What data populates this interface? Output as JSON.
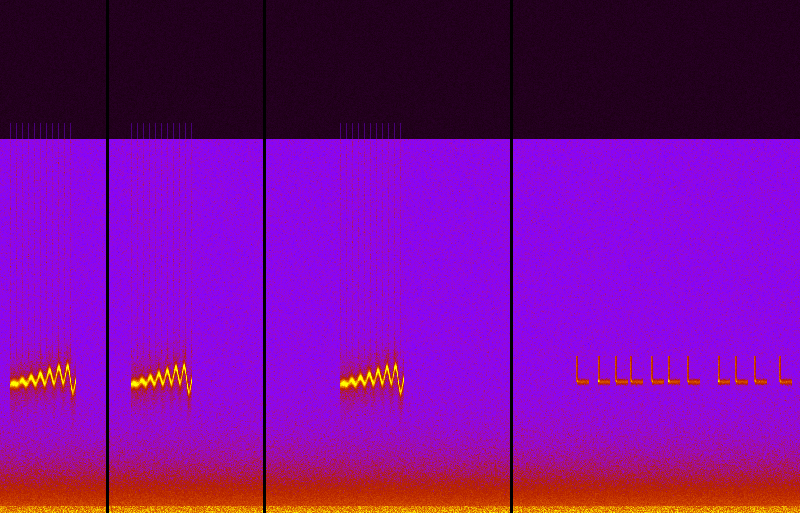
{
  "chart_data": {
    "type": "spectrogram",
    "tick_labels": false,
    "xlim": [
      0,
      1
    ],
    "ylim": [
      0,
      1
    ],
    "dividers": [
      0.134,
      0.331,
      0.64
    ],
    "cutoff": 0.73,
    "calls": [
      {
        "type": "chirp",
        "start": 0.012,
        "end": 0.095,
        "frequency": 0.25
      },
      {
        "type": "chirp",
        "start": 0.163,
        "end": 0.24,
        "frequency": 0.25
      },
      {
        "type": "chirp",
        "start": 0.425,
        "end": 0.505,
        "frequency": 0.25
      }
    ],
    "clicks": {
      "times": [
        0.721,
        0.748,
        0.77,
        0.789,
        0.815,
        0.836,
        0.86,
        0.898,
        0.92,
        0.944,
        0.975
      ],
      "frequency": 0.255
    }
  }
}
